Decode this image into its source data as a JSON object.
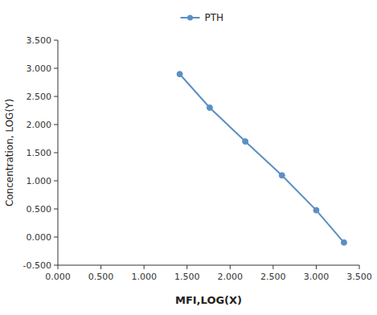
{
  "chart_data": {
    "type": "line",
    "xlabel": "MFI,LOG(X)",
    "ylabel": "Concentration, LOG(Y)",
    "x": [
      1.415,
      1.763,
      2.176,
      2.602,
      3.0,
      3.322
    ],
    "series": [
      {
        "name": "PTH",
        "color": "#5b8fc4",
        "marker": "circle",
        "line_style": "solid",
        "values": [
          2.897,
          2.301,
          1.699,
          1.097,
          0.477,
          -0.097
        ]
      }
    ],
    "xlim": [
      0.0,
      3.5
    ],
    "ylim": [
      -0.5,
      3.5
    ],
    "xticks": [
      {
        "value": 0.0,
        "label": "0.000"
      },
      {
        "value": 0.5,
        "label": "0.500"
      },
      {
        "value": 1.0,
        "label": "1.000"
      },
      {
        "value": 1.5,
        "label": "1.500"
      },
      {
        "value": 2.0,
        "label": "2.000"
      },
      {
        "value": 2.5,
        "label": "2.500"
      },
      {
        "value": 3.0,
        "label": "3.000"
      },
      {
        "value": 3.5,
        "label": "3.500"
      }
    ],
    "yticks": [
      {
        "value": -0.5,
        "label": "-0.500"
      },
      {
        "value": 0.0,
        "label": "0.000"
      },
      {
        "value": 0.5,
        "label": "0.500"
      },
      {
        "value": 1.0,
        "label": "1.000"
      },
      {
        "value": 1.5,
        "label": "1.500"
      },
      {
        "value": 2.0,
        "label": "2.000"
      },
      {
        "value": 2.5,
        "label": "2.500"
      },
      {
        "value": 3.0,
        "label": "3.000"
      },
      {
        "value": 3.5,
        "label": "3.500"
      }
    ],
    "grid": false,
    "legend": "top"
  }
}
